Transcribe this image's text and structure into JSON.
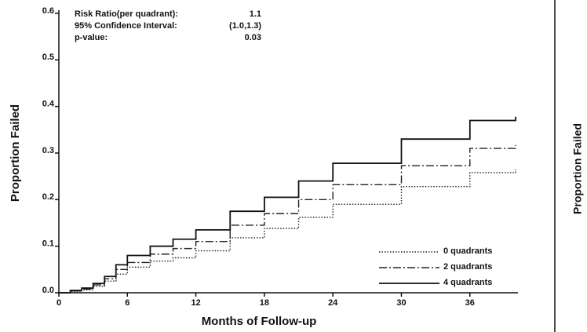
{
  "chart_data": {
    "type": "step",
    "xlabel": "Months of Follow-up",
    "ylabel": "Proportion Failed",
    "annotations": [
      {
        "label": "Risk Ratio(per quadrant):",
        "value": "1.1"
      },
      {
        "label": "95% Confidence Interval:",
        "value": "(1.0,1.3)"
      },
      {
        "label": "p-value:",
        "value": "0.03"
      }
    ],
    "xlim": [
      0,
      40
    ],
    "xticks": [
      0,
      6,
      12,
      18,
      24,
      30,
      36
    ],
    "ylim": [
      0,
      0.6
    ],
    "yticks": [
      {
        "value": 0,
        "label": "0.0"
      },
      0.1,
      0.2,
      0.3,
      0.4,
      0.5,
      0.6
    ],
    "legend": "lower right",
    "series": [
      {
        "name": "0 quadrants",
        "color": "#222",
        "style": "dotted",
        "x": [
          0,
          1,
          2,
          3,
          4,
          5,
          6,
          8,
          10,
          12,
          15,
          18,
          21,
          24,
          30,
          36,
          40
        ],
        "values": [
          0,
          0.003,
          0.006,
          0.014,
          0.025,
          0.04,
          0.055,
          0.068,
          0.075,
          0.09,
          0.118,
          0.138,
          0.162,
          0.19,
          0.228,
          0.258,
          0.265
        ]
      },
      {
        "name": "2 quadrants",
        "color": "#222",
        "style": "dashdot",
        "x": [
          0,
          1,
          2,
          3,
          4,
          5,
          6,
          8,
          10,
          12,
          15,
          18,
          21,
          24,
          30,
          36,
          40
        ],
        "values": [
          0,
          0.004,
          0.008,
          0.017,
          0.03,
          0.05,
          0.065,
          0.083,
          0.095,
          0.11,
          0.145,
          0.17,
          0.2,
          0.232,
          0.273,
          0.31,
          0.317
        ]
      },
      {
        "name": "4 quadrants",
        "color": "#111",
        "style": "solid",
        "x": [
          0,
          1,
          2,
          3,
          4,
          5,
          6,
          8,
          10,
          12,
          15,
          18,
          21,
          24,
          30,
          36,
          40
        ],
        "values": [
          0,
          0.005,
          0.01,
          0.02,
          0.035,
          0.06,
          0.08,
          0.1,
          0.115,
          0.135,
          0.175,
          0.205,
          0.24,
          0.278,
          0.33,
          0.37,
          0.378
        ]
      }
    ]
  },
  "side_panel": {
    "ylabel": "Proportion Failed"
  }
}
